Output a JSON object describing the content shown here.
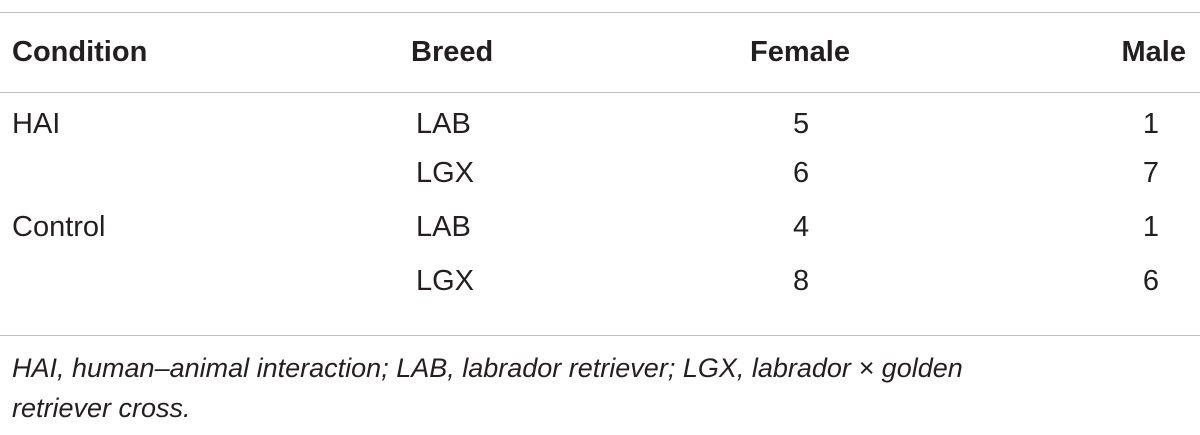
{
  "table": {
    "headers": {
      "condition": "Condition",
      "breed": "Breed",
      "female": "Female",
      "male": "Male"
    },
    "rows": [
      {
        "condition": "HAI",
        "breed": "LAB",
        "female": "5",
        "male": "1"
      },
      {
        "condition": "",
        "breed": "LGX",
        "female": "6",
        "male": "7"
      },
      {
        "condition": "Control",
        "breed": "LAB",
        "female": "4",
        "male": "1"
      },
      {
        "condition": "",
        "breed": "LGX",
        "female": "8",
        "male": "6"
      }
    ]
  },
  "footnote": {
    "line1": "HAI, human–animal interaction; LAB, labrador retriever; LGX, labrador × golden",
    "line2": "retriever cross."
  }
}
